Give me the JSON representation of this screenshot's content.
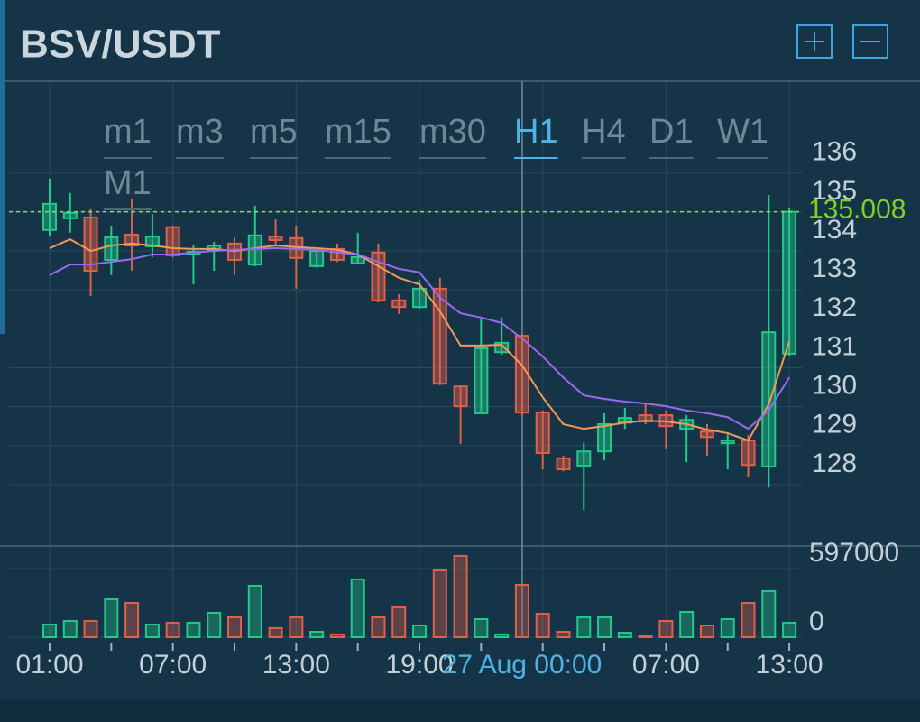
{
  "header": {
    "title": "BSV/USDT"
  },
  "timeframes": [
    "m1",
    "m3",
    "m5",
    "m15",
    "m30",
    "H1",
    "H4",
    "D1",
    "W1",
    "M1"
  ],
  "active_timeframe": 5,
  "chart_data": {
    "type": "candlestick",
    "categories": [
      "01:00",
      null,
      null,
      null,
      null,
      null,
      "07:00",
      null,
      null,
      null,
      null,
      null,
      "13:00",
      null,
      null,
      null,
      null,
      null,
      "19:00",
      null,
      null,
      null,
      null,
      "27 Aug 00:00",
      null,
      null,
      null,
      null,
      null,
      null,
      "07:00",
      null,
      null,
      null,
      null,
      null,
      "13:00"
    ],
    "crosshair_index": 23,
    "open": [
      134.54,
      134.84,
      134.86,
      133.77,
      134.42,
      134.12,
      134.61,
      133.91,
      134.03,
      134.19,
      133.65,
      134.37,
      134.33,
      133.61,
      134.05,
      133.68,
      133.96,
      132.73,
      132.56,
      133.03,
      130.52,
      129.83,
      131.4,
      131.82,
      129.85,
      128.67,
      128.48,
      128.85,
      129.59,
      129.78,
      129.78,
      129.43,
      129.36,
      129.06,
      129.13,
      128.46,
      131.36
    ],
    "high": [
      135.86,
      135.49,
      135.07,
      134.65,
      135.35,
      134.95,
      134.65,
      134.14,
      134.23,
      134.35,
      135.16,
      134.81,
      134.65,
      134.07,
      134.19,
      134.47,
      134.19,
      132.89,
      133.26,
      133.31,
      130.52,
      132.24,
      132.29,
      131.87,
      129.9,
      128.74,
      129.08,
      129.83,
      129.97,
      130.06,
      129.9,
      129.78,
      129.55,
      129.29,
      129.27,
      135.44,
      135.12
    ],
    "low": [
      134.37,
      134.47,
      132.84,
      133.38,
      133.49,
      133.84,
      133.84,
      133.14,
      133.49,
      133.38,
      133.61,
      134.12,
      133.03,
      133.56,
      133.72,
      133.65,
      132.68,
      132.38,
      132.52,
      130.55,
      129.04,
      129.83,
      131.33,
      129.78,
      128.39,
      128.34,
      127.34,
      128.62,
      129.43,
      129.55,
      128.92,
      128.57,
      128.74,
      128.39,
      128.2,
      127.92,
      131.29
    ],
    "close": [
      135.21,
      134.98,
      133.49,
      134.35,
      134.14,
      134.37,
      133.89,
      133.98,
      134.14,
      133.77,
      134.4,
      134.28,
      133.82,
      134.0,
      133.77,
      133.84,
      132.73,
      132.56,
      133.03,
      130.59,
      130.01,
      131.5,
      131.64,
      129.85,
      128.81,
      128.39,
      128.85,
      129.55,
      129.71,
      129.62,
      129.5,
      129.66,
      129.22,
      129.13,
      128.5,
      131.91,
      135.008
    ],
    "volume": [
      110000,
      141000,
      141000,
      330000,
      298000,
      110000,
      126000,
      126000,
      212000,
      173000,
      448000,
      79000,
      173000,
      47000,
      24000,
      503000,
      173000,
      259000,
      102000,
      581000,
      707000,
      157000,
      24000,
      456000,
      204000,
      47000,
      173000,
      173000,
      39000,
      8000,
      141000,
      220000,
      102000,
      157000,
      298000,
      401000,
      126000
    ],
    "series": [
      {
        "color": "#f39a55",
        "values": [
          134.07,
          134.3,
          134.0,
          134.14,
          134.19,
          134.14,
          134.07,
          134.05,
          134.05,
          134.0,
          134.07,
          134.14,
          134.1,
          134.07,
          134.03,
          133.91,
          133.61,
          133.31,
          133.14,
          132.45,
          131.57,
          131.57,
          131.59,
          131.06,
          130.24,
          129.55,
          129.43,
          129.5,
          129.59,
          129.64,
          129.62,
          129.55,
          129.41,
          129.32,
          129.13,
          130.06,
          131.68
        ]
      },
      {
        "color": "#9a6af0",
        "values": [
          133.38,
          133.65,
          133.65,
          133.72,
          133.79,
          133.91,
          133.91,
          133.96,
          134.0,
          134.03,
          134.05,
          134.07,
          134.05,
          134.03,
          133.96,
          133.91,
          133.72,
          133.54,
          133.45,
          132.8,
          132.4,
          132.29,
          132.15,
          131.75,
          131.29,
          130.75,
          130.29,
          130.2,
          130.13,
          130.08,
          130.01,
          129.9,
          129.83,
          129.73,
          129.43,
          129.9,
          130.75
        ]
      }
    ],
    "last_price": 135.008,
    "up_color": "#22c98a",
    "down_color": "#e0604a",
    "ylim": [
      126.42,
      138.36
    ],
    "yticks": [
      128,
      129,
      130,
      131,
      132,
      133,
      134,
      135,
      136
    ],
    "y2lim": [
      0,
      793000
    ],
    "y2ticks": [
      0,
      597000
    ],
    "grid": true
  }
}
